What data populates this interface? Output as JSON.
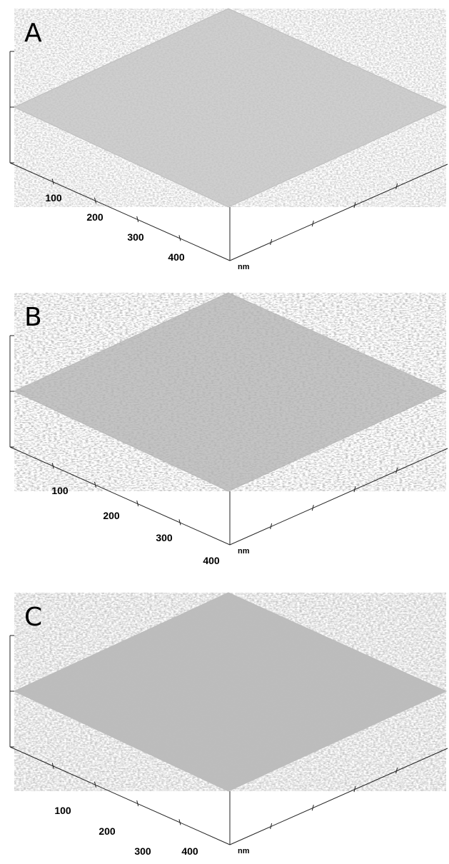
{
  "panels": [
    {
      "label": "A",
      "ticks": [
        "100",
        "200",
        "300",
        "400"
      ],
      "unit": "nm"
    },
    {
      "label": "B",
      "ticks": [
        "100",
        "200",
        "300",
        "400"
      ],
      "unit": "nm"
    },
    {
      "label": "C",
      "ticks": [
        "100",
        "200",
        "300",
        "400"
      ],
      "unit": "nm"
    }
  ]
}
